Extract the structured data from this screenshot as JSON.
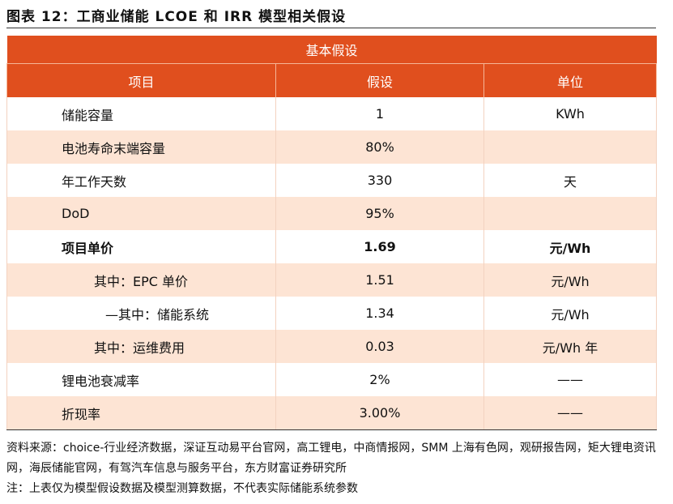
{
  "header": {
    "title": "图表 12：工商业储能 LCOE 和 IRR 模型相关假设"
  },
  "table": {
    "caption": "基本假设",
    "columns": [
      "项目",
      "假设",
      "单位"
    ],
    "rows": [
      [
        "储能容量",
        "1",
        "KWh"
      ],
      [
        "电池寿命末端容量",
        "80%",
        null
      ],
      [
        "年工作天数",
        "330",
        "天"
      ],
      [
        "DoD",
        "95%",
        null
      ],
      [
        "项目单价",
        "1.69",
        "元/Wh"
      ],
      [
        "其中：EPC 单价",
        "1.51",
        "元/Wh"
      ],
      [
        "—其中：储能系统",
        "1.34",
        "元/Wh"
      ],
      [
        "其中：运维费用",
        "0.03",
        "元/Wh 年"
      ],
      [
        "锂电池衰减率",
        "2%",
        "——"
      ],
      [
        "折现率",
        "3.00%",
        "——"
      ]
    ]
  },
  "notes": [
    "资料来源：choice-行业经济数据，深证互动易平台官网，高工锂电，中商情报网，SMM 上海有色网，观研报告网，矩大锂电资讯网，海辰储能官网，有驾汽车信息与服务平台，东方财富证券研究所",
    "注：上表仅为模型假设数据及模型测算数据，不代表实际储能系统参数"
  ]
}
